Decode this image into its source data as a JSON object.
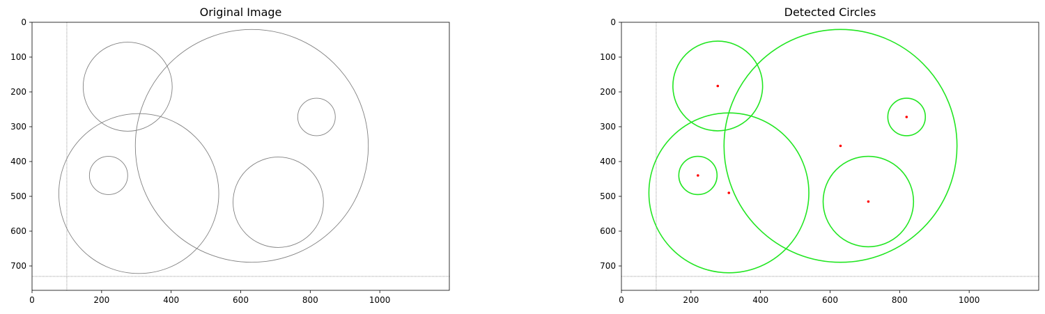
{
  "chart_data": [
    {
      "type": "image",
      "title": "Original Image",
      "xlim": [
        0,
        1200
      ],
      "ylim": [
        770,
        0
      ],
      "xticks": [
        0,
        200,
        400,
        600,
        800,
        1000
      ],
      "yticks": [
        0,
        100,
        200,
        300,
        400,
        500,
        600,
        700
      ],
      "guide_lines": {
        "x": 100,
        "y": 730,
        "color": "#9a9a9a"
      },
      "circles": [
        {
          "cx": 275,
          "cy": 185,
          "r": 128
        },
        {
          "cx": 632,
          "cy": 355,
          "r": 335
        },
        {
          "cx": 818,
          "cy": 272,
          "r": 54
        },
        {
          "cx": 307,
          "cy": 492,
          "r": 230
        },
        {
          "cx": 220,
          "cy": 440,
          "r": 55
        },
        {
          "cx": 708,
          "cy": 517,
          "r": 130
        }
      ],
      "circle_color": "#808080",
      "show_centers": false
    },
    {
      "type": "image",
      "title": "Detected Circles",
      "xlim": [
        0,
        1200
      ],
      "ylim": [
        770,
        0
      ],
      "xticks": [
        0,
        200,
        400,
        600,
        800,
        1000
      ],
      "yticks": [
        0,
        100,
        200,
        300,
        400,
        500,
        600,
        700
      ],
      "guide_lines": {
        "x": 100,
        "y": 730,
        "color": "#9a9a9a"
      },
      "circles": [
        {
          "cx": 277,
          "cy": 183,
          "r": 129
        },
        {
          "cx": 630,
          "cy": 355,
          "r": 335
        },
        {
          "cx": 820,
          "cy": 272,
          "r": 54
        },
        {
          "cx": 309,
          "cy": 490,
          "r": 230
        },
        {
          "cx": 220,
          "cy": 440,
          "r": 55
        },
        {
          "cx": 710,
          "cy": 515,
          "r": 130
        }
      ],
      "circle_color": "#22e622",
      "center_color": "#ff0000",
      "show_centers": true
    }
  ]
}
